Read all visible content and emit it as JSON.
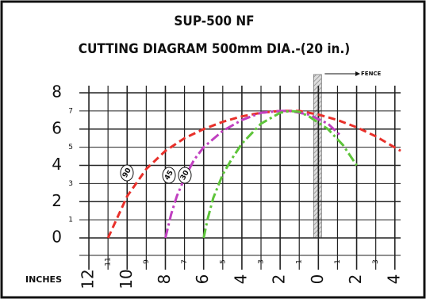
{
  "chart_data": {
    "type": "line",
    "title": "SUP-500 NF",
    "subtitle": "CUTTING DIAGRAM 500mm DIA.-(20 in.)",
    "x_label": "INCHES",
    "fence_label": "FENCE",
    "xlim": [
      -12.5,
      4.3
    ],
    "ylim": [
      0,
      8
    ],
    "xticks": [
      {
        "value": -12,
        "label": "12"
      },
      {
        "value": -11,
        "label": "11"
      },
      {
        "value": -10,
        "label": "10"
      },
      {
        "value": -9,
        "label": "9"
      },
      {
        "value": -8,
        "label": "8"
      },
      {
        "value": -7,
        "label": "7"
      },
      {
        "value": -6,
        "label": "6"
      },
      {
        "value": -5,
        "label": "5"
      },
      {
        "value": -4,
        "label": "4"
      },
      {
        "value": -3,
        "label": "3"
      },
      {
        "value": -2,
        "label": "2"
      },
      {
        "value": -1,
        "label": "1"
      },
      0,
      1,
      2,
      3,
      4
    ],
    "yticks": [
      0,
      1,
      2,
      3,
      4,
      5,
      6,
      7,
      8
    ],
    "grid": true,
    "fence_x": 0,
    "series": [
      {
        "name": "90",
        "color": "#e8302a",
        "x": [
          -11,
          -10,
          -9,
          -8,
          -7,
          -6,
          -5,
          -4,
          -3,
          -2,
          -1,
          0,
          1,
          2,
          3,
          4.3
        ],
        "values": [
          0,
          2.3,
          3.8,
          4.8,
          5.5,
          6.0,
          6.4,
          6.7,
          6.9,
          7.0,
          7.0,
          6.8,
          6.5,
          6.1,
          5.6,
          4.8
        ]
      },
      {
        "name": "45",
        "color": "#c040c0",
        "x": [
          -8,
          -7.7,
          -7.4,
          -7,
          -6.5,
          -6,
          -5,
          -4,
          -3,
          -2,
          -1.5,
          -0.5,
          0.5,
          1.2
        ],
        "values": [
          0,
          1.3,
          2.3,
          3.3,
          4.3,
          5.0,
          5.9,
          6.5,
          6.9,
          7.0,
          7.0,
          6.8,
          6.3,
          5.6
        ]
      },
      {
        "name": "30",
        "color": "#5ec43a",
        "x": [
          -6,
          -5.8,
          -5.5,
          -5,
          -4.5,
          -4,
          -3,
          -2,
          -1.5,
          -1,
          -0.5,
          0.5,
          1.3,
          2
        ],
        "values": [
          0,
          1.0,
          2.2,
          3.5,
          4.4,
          5.2,
          6.3,
          6.9,
          7.0,
          6.95,
          6.7,
          6.0,
          5.1,
          4.0
        ]
      }
    ]
  }
}
